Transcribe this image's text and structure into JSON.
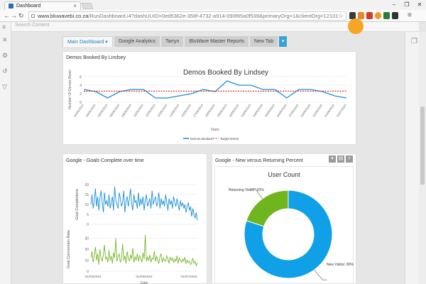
{
  "browser": {
    "tab_title": "Dashboard",
    "tab_close": "×",
    "url_host": "www.bluwavebi.co.za",
    "url_path": "/RunDashboard.i4?dashUUID=0ed5362e-358f-4732-a914-090f85a0f539&primaryOrg=1&clientOrg=12101",
    "window_controls": [
      "–",
      "❐",
      "✕"
    ]
  },
  "app": {
    "search_placeholder": "Search Content",
    "dashboard_tabs": [
      {
        "label": "Main Dashboard ▾",
        "active": true
      },
      {
        "label": "Google Analytics",
        "active": false
      },
      {
        "label": "Tarryn",
        "active": false
      },
      {
        "label": "BluWave Master Reports",
        "active": false
      },
      {
        "label": "New Tab",
        "active": false
      }
    ],
    "add_tab": "▾"
  },
  "panels": {
    "demos": {
      "title": "Demos Booked By Lindsey"
    },
    "goals": {
      "title": "Google - Goals Complete over time"
    },
    "visitors": {
      "title": "Google - New versus Returning Percent"
    },
    "panel_buttons": [
      "▾",
      "▤",
      "+"
    ]
  },
  "chart_data": [
    {
      "type": "line",
      "title": "Demos Booked By Lindsey",
      "xlabel": "Date",
      "ylabel": "Number Of Demos Booki",
      "ylim": [
        0,
        6
      ],
      "yticks": [
        0,
        2,
        4,
        6
      ],
      "categories": [
        "01/05/2016",
        "04/05/2016",
        "05/05/2016",
        "06/05/2016",
        "09/05/2016",
        "10/05/2016",
        "11/05/2016",
        "12/05/2016",
        "13/05/2016",
        "16/05/2016",
        "17/05/2016",
        "18/05/2016",
        "19/05/2016",
        "20/05/2016",
        "23/05/2016",
        "24/05/2016",
        "25/05/2016",
        "26/05/2016",
        "27/05/2016",
        "30/05/2016",
        "31/05/2016",
        "01/06/2016",
        "01/07/2016"
      ],
      "series": [
        {
          "name": "Demos Booked",
          "color": "#1a8fd6",
          "values": [
            3,
            2.5,
            1,
            2.5,
            3,
            3,
            1,
            1,
            1.5,
            2,
            3,
            2.5,
            5,
            4,
            4,
            3,
            3,
            1,
            3,
            3,
            2.5,
            1.5,
            1
          ]
        },
        {
          "name": "Target Demo",
          "color": "#d9342b",
          "style": "dashed",
          "values": [
            2.6,
            2.6,
            2.6,
            2.6,
            2.6,
            2.6,
            2.6,
            2.6,
            2.6,
            2.6,
            2.6,
            2.6,
            2.6,
            2.6,
            2.6,
            2.6,
            2.6,
            2.6,
            2.6,
            2.6,
            2.6,
            2.6,
            2.6
          ]
        }
      ],
      "legend": "bottom"
    },
    {
      "type": "line",
      "title": "",
      "ylabel": "Goal Completions",
      "ylim": [
        0,
        20
      ],
      "yticks": [
        0,
        5,
        10,
        15,
        20
      ],
      "series": [
        {
          "name": "",
          "color": "#1a8fd6",
          "values": [
            10,
            15,
            8,
            12,
            18,
            9,
            14,
            7,
            13,
            17,
            11,
            6,
            16,
            10,
            12,
            9,
            15,
            8,
            11,
            14,
            7,
            19,
            12,
            10,
            8,
            16,
            13,
            9,
            11,
            17,
            6,
            12,
            14,
            9,
            13,
            18,
            10,
            7,
            15,
            11,
            12,
            8,
            16,
            9,
            13,
            10,
            14,
            7,
            12,
            15,
            9,
            11,
            13,
            8,
            17,
            10,
            12,
            14,
            9,
            11,
            16,
            8,
            13,
            10,
            12,
            9,
            15,
            11,
            7,
            13,
            10,
            12,
            8,
            14,
            11,
            9,
            13,
            10,
            7,
            12,
            9,
            11,
            8,
            10,
            6,
            9,
            11,
            7,
            9,
            4,
            8,
            5,
            3,
            6,
            2
          ]
        }
      ]
    },
    {
      "type": "line",
      "title": "",
      "xlabel": "Date",
      "ylabel": "Goal Conversion Rate",
      "ylim": [
        0,
        40
      ],
      "yticks": [
        0,
        10,
        20,
        30
      ],
      "xticks": [
        "01/03/2016",
        "01/05/2016",
        "01/07/2016"
      ],
      "series": [
        {
          "name": "",
          "color": "#7ab82e",
          "values": [
            12,
            18,
            8,
            14,
            22,
            10,
            16,
            6,
            20,
            12,
            9,
            15,
            24,
            11,
            13,
            8,
            19,
            10,
            14,
            7,
            17,
            12,
            30,
            9,
            13,
            16,
            8,
            11,
            25,
            10,
            14,
            7,
            18,
            12,
            9,
            15,
            11,
            21,
            8,
            13,
            10,
            16,
            9,
            14,
            12,
            8,
            17,
            11,
            33,
            9,
            13,
            10,
            15,
            8,
            12,
            11,
            18,
            9,
            14,
            10,
            7,
            13,
            16,
            8,
            12,
            10,
            9,
            14,
            11,
            7,
            13,
            10,
            12,
            8,
            11,
            9,
            14,
            7,
            12,
            10,
            8,
            11,
            9,
            13,
            7,
            10,
            8,
            9,
            6,
            8,
            12,
            7,
            9,
            5,
            8
          ]
        }
      ]
    },
    {
      "type": "pie",
      "title": "User Count",
      "donut": true,
      "slices": [
        {
          "label": "New Visitor",
          "value": 80,
          "display": "New Visitor: 80%",
          "color": "#0fa0e8"
        },
        {
          "label": "Returning Visitor",
          "value": 20,
          "display": "Returning Visitor: 20%",
          "color": "#6fb51e"
        }
      ]
    }
  ]
}
